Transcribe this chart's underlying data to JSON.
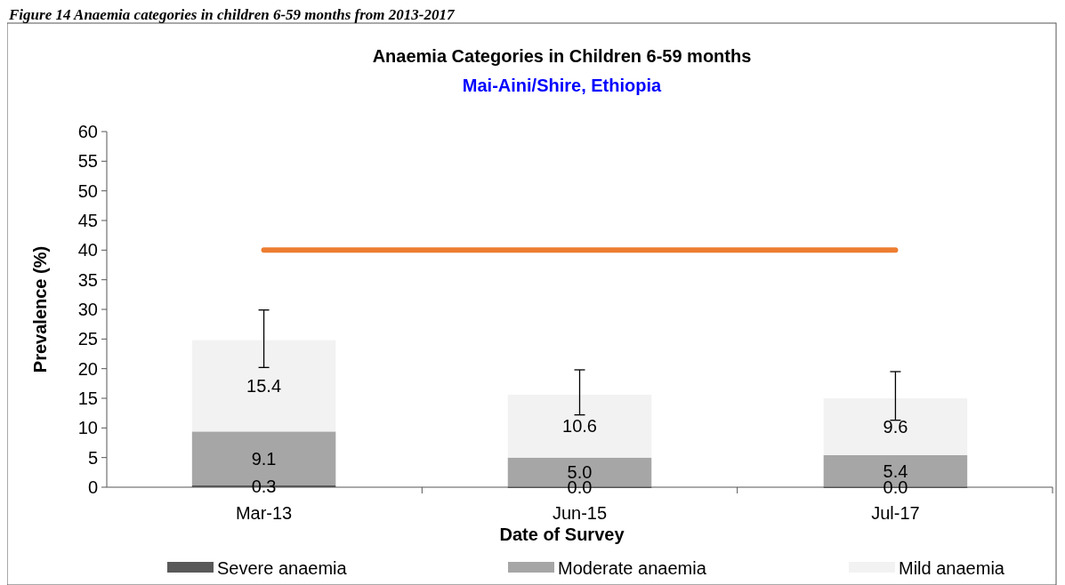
{
  "chart_data": {
    "type": "bar",
    "title": "Anaemia Categories in Children 6-59 months",
    "subtitle": "Mai-Aini/Shire, Ethiopia",
    "annotations": [
      "Figure 14 Anaemia categories in children 6-59 months from 2013-2017"
    ],
    "xlabel": "Date of Survey",
    "ylabel": "Prevalence (%)",
    "categories": [
      "Mar-13",
      "Jun-15",
      "Jul-17"
    ],
    "stacked": true,
    "series": [
      {
        "name": "Severe anaemia",
        "color": "#595959",
        "values": [
          0.3,
          0.0,
          0.0
        ],
        "value_labels": [
          "0.3",
          "0.0",
          "0.0"
        ]
      },
      {
        "name": "Moderate anaemia",
        "color": "#a6a6a6",
        "values": [
          9.1,
          5.0,
          5.4
        ],
        "value_labels": [
          "9.1",
          "5.0",
          "5.4"
        ]
      },
      {
        "name": "Mild anaemia",
        "color": "#f2f2f2",
        "values": [
          15.4,
          10.6,
          9.6
        ],
        "value_labels": [
          "15.4",
          "10.6",
          "9.6"
        ],
        "errors": [
          [
            20.2,
            29.9
          ],
          [
            12.2,
            19.8
          ],
          [
            11.3,
            19.5
          ]
        ]
      },
      {
        "type": "line",
        "color": "#ed7d31",
        "values": [
          40,
          40,
          40
        ]
      }
    ],
    "ylim": [
      0,
      60
    ],
    "yticks": [
      0,
      5,
      10,
      15,
      20,
      25,
      30,
      35,
      40,
      45,
      50,
      55,
      60
    ],
    "grid": false,
    "legend": "bottom"
  }
}
